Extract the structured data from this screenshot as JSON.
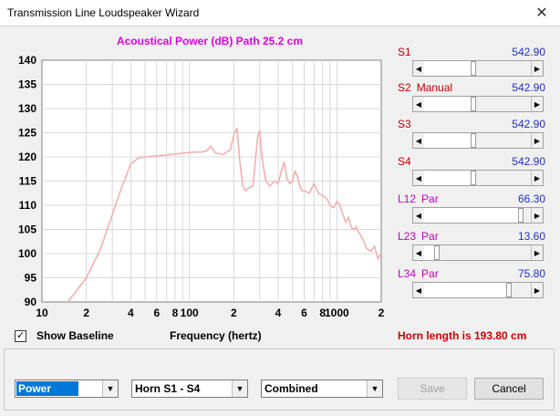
{
  "window": {
    "title": "Transmission Line Loudspeaker Wizard",
    "close_glyph": "✕"
  },
  "chart_data": {
    "type": "line",
    "title": "Acoustical Power (dB)   Path 25.2 cm",
    "xlabel": "Frequency (hertz)",
    "ylabel": "",
    "x_scale": "log",
    "xlim": [
      10,
      2000
    ],
    "ylim": [
      90,
      140
    ],
    "x_ticks": [
      10,
      20,
      40,
      60,
      80,
      100,
      200,
      400,
      600,
      800,
      1000,
      2000
    ],
    "x_tick_labels": [
      "10",
      "2",
      "4",
      "6",
      "8",
      "100",
      "2",
      "4",
      "6",
      "8",
      "1000",
      "2"
    ],
    "y_ticks": [
      90,
      95,
      100,
      105,
      110,
      115,
      120,
      125,
      130,
      135,
      140
    ],
    "grid": true,
    "line_color": "#f4b0b0",
    "series": [
      {
        "x": [
          15,
          20,
          25,
          30,
          35,
          40,
          45,
          50,
          60,
          70,
          80,
          90,
          100,
          110,
          120,
          130,
          140,
          150,
          170,
          190,
          200,
          210,
          220,
          230,
          240,
          250,
          270,
          290,
          300,
          310,
          330,
          350,
          380,
          400,
          420,
          440,
          460,
          480,
          500,
          520,
          540,
          560,
          580,
          600,
          650,
          700,
          750,
          800,
          850,
          900,
          950,
          1000,
          1050,
          1100,
          1150,
          1200,
          1250,
          1300,
          1350,
          1400,
          1500,
          1600,
          1700,
          1800,
          1900,
          2000
        ],
        "y": [
          90,
          95,
          101,
          108,
          114,
          118.5,
          119.8,
          120,
          120.2,
          120.4,
          120.6,
          120.8,
          120.9,
          121,
          121,
          121.2,
          122.2,
          120.8,
          120.5,
          121.5,
          124.5,
          126,
          119,
          114,
          113,
          113.5,
          114,
          124,
          125.5,
          120,
          115,
          114,
          115,
          114.5,
          117,
          119,
          115.5,
          114.5,
          115,
          117,
          116,
          114,
          113,
          113,
          112.5,
          114.5,
          112.5,
          112,
          111.5,
          110,
          109.5,
          110.8,
          110,
          108,
          106.5,
          107.5,
          105.5,
          105,
          105.5,
          104.5,
          103,
          101,
          100.5,
          101.5,
          99,
          100
        ]
      }
    ]
  },
  "controls": [
    {
      "name": "S1",
      "sub": "",
      "value": "542.90",
      "color": "#c00000",
      "position": 0.46
    },
    {
      "name": "S2",
      "sub": "Manual",
      "value": "542.90",
      "color": "#c00000",
      "position": 0.46
    },
    {
      "name": "S3",
      "sub": "",
      "value": "542.90",
      "color": "#c00000",
      "position": 0.46
    },
    {
      "name": "S4",
      "sub": "",
      "value": "542.90",
      "color": "#c00000",
      "position": 0.46
    },
    {
      "name": "L12",
      "sub": "Par",
      "value": "66.30",
      "color": "#c000c0",
      "position": 0.9
    },
    {
      "name": "L23",
      "sub": "Par",
      "value": "13.60",
      "color": "#c000c0",
      "position": 0.12
    },
    {
      "name": "L34",
      "sub": "Par",
      "value": "75.80",
      "color": "#c000c0",
      "position": 0.79
    }
  ],
  "show_baseline": {
    "label": "Show Baseline",
    "checked": true,
    "check_glyph": "✓"
  },
  "horn_length_text": "Horn length is 193.80 cm",
  "dropdowns": {
    "view": "Power",
    "horn": "Horn S1 - S4",
    "mode": "Combined",
    "arrow_glyph": "▼"
  },
  "buttons": {
    "save": "Save",
    "cancel": "Cancel"
  },
  "slider_arrows": {
    "left": "◀",
    "right": "▶"
  }
}
